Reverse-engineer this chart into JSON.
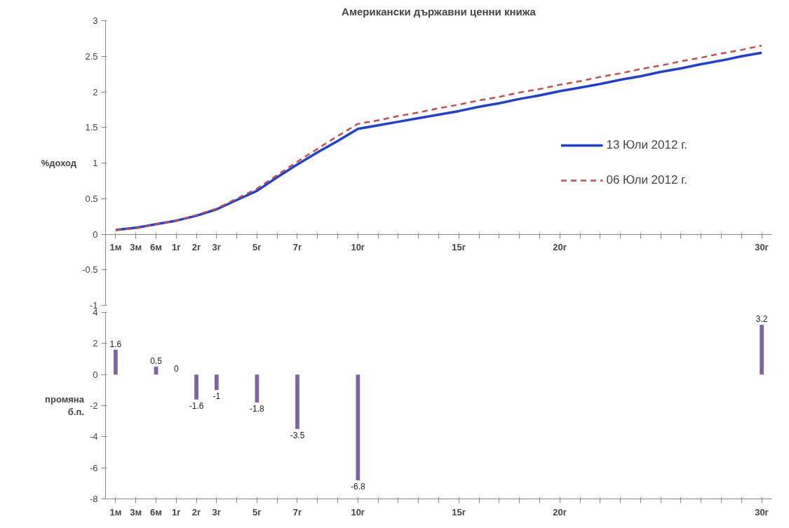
{
  "chart_data": [
    {
      "type": "line",
      "title": "Американски държавни ценни книжа",
      "ylabel": "%доход",
      "categories": [
        "1м",
        "3м",
        "6м",
        "1г",
        "2г",
        "3г",
        null,
        "5г",
        null,
        "7г",
        null,
        null,
        "10г",
        null,
        null,
        null,
        null,
        "15г",
        null,
        null,
        null,
        null,
        "20г",
        null,
        null,
        null,
        null,
        null,
        null,
        null,
        null,
        null,
        "30г"
      ],
      "series": [
        {
          "name": "13 Юли 2012 г.",
          "color": "#1f3fd6",
          "line_style": "solid",
          "values": [
            0.06,
            0.09,
            0.14,
            0.19,
            0.26,
            0.35,
            0.48,
            0.61,
            0.8,
            0.98,
            1.15,
            1.31,
            1.48,
            1.53,
            1.58,
            1.63,
            1.68,
            1.73,
            1.79,
            1.84,
            1.9,
            1.95,
            2.01,
            2.06,
            2.11,
            2.17,
            2.22,
            2.28,
            2.33,
            2.39,
            2.44,
            2.5,
            2.55
          ]
        },
        {
          "name": "06 Юли 2012 г.",
          "color": "#c0504d",
          "line_style": "dashed",
          "values": [
            0.06,
            0.08,
            0.14,
            0.19,
            0.27,
            0.36,
            0.5,
            0.64,
            0.83,
            1.02,
            1.2,
            1.38,
            1.55,
            1.6,
            1.66,
            1.71,
            1.77,
            1.82,
            1.88,
            1.93,
            1.99,
            2.04,
            2.1,
            2.15,
            2.21,
            2.26,
            2.32,
            2.37,
            2.43,
            2.48,
            2.54,
            2.59,
            2.65
          ]
        }
      ],
      "ylim": [
        -1,
        3
      ],
      "yticks": [
        -1,
        -0.5,
        0,
        0.5,
        1,
        1.5,
        2,
        2.5,
        3
      ],
      "grid": false,
      "legend": "right",
      "marker": "none"
    },
    {
      "type": "bar",
      "ylabel": "промяна б.п.",
      "categories": [
        "1м",
        "3м",
        "6м",
        "1г",
        "2г",
        "3г",
        null,
        "5г",
        null,
        "7г",
        null,
        null,
        "10г",
        null,
        null,
        null,
        null,
        "15г",
        null,
        null,
        null,
        null,
        "20г",
        null,
        null,
        null,
        null,
        null,
        null,
        null,
        null,
        null,
        "30г"
      ],
      "series": [
        {
          "color": "#8064a2",
          "values": [
            1.6,
            null,
            0.5,
            0,
            -1.6,
            -1,
            null,
            -1.8,
            null,
            -3.5,
            null,
            null,
            -6.8,
            null,
            null,
            null,
            null,
            null,
            null,
            null,
            null,
            null,
            null,
            null,
            null,
            null,
            null,
            null,
            null,
            null,
            null,
            null,
            3.2
          ]
        }
      ],
      "ylim": [
        -8,
        4
      ],
      "yticks": [
        -8,
        -6,
        -4,
        -2,
        0,
        2,
        4
      ],
      "grid": false,
      "legend": false,
      "data_labels": true
    }
  ]
}
